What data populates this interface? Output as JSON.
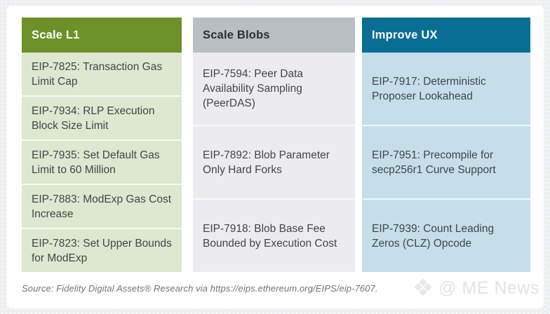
{
  "columns": [
    {
      "title": "Scale L1",
      "header_color": "#6e9028",
      "header_text_color": "#ffffff",
      "body_color": "#dee7cf",
      "items": [
        "EIP-7825: Transaction Gas Limit Cap",
        "EIP-7934: RLP Execution Block Size Limit",
        "EIP-7935: Set Default Gas Limit to 60 Million",
        "EIP-7883: ModExp Gas Cost Increase",
        "EIP-7823: Set Upper Bounds for ModExp"
      ]
    },
    {
      "title": "Scale Blobs",
      "header_color": "#b9bec2",
      "header_text_color": "#2b3035",
      "body_color": "#ececee",
      "items": [
        "EIP-7594: Peer Data Availability Sampling (PeerDAS)",
        "EIP-7892: Blob Parameter Only Hard Forks",
        "EIP-7918: Blob Base Fee Bounded by Execution Cost"
      ]
    },
    {
      "title": "Improve UX",
      "header_color": "#096e94",
      "header_text_color": "#ffffff",
      "body_color": "#c5dee9",
      "items": [
        "EIP-7917: Deterministic Proposer Lookahead",
        "EIP-7951: Precompile for secp256r1 Curve Support",
        "EIP-7939: Count Leading Zeros (CLZ) Opcode"
      ]
    }
  ],
  "footer": {
    "source": "Source: Fidelity Digital Assets® Research via https://eips.ethereum.org/EIPS/eip-7607."
  },
  "watermark": {
    "icon": "diamond-icon",
    "icon_glyph": "❖",
    "text": "@ ME News"
  }
}
